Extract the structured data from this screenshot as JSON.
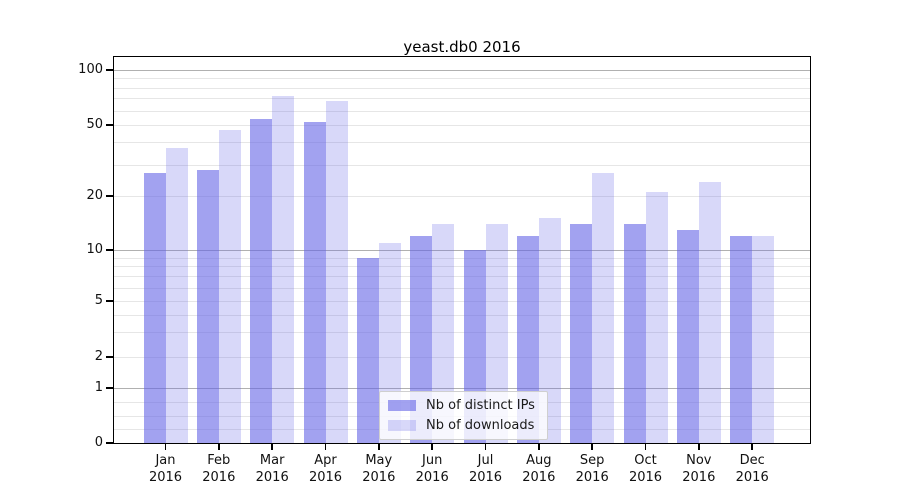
{
  "title": "yeast.db0 2016",
  "chart_data": {
    "type": "bar",
    "title": "yeast.db0 2016",
    "categories": [
      "Jan 2016",
      "Feb 2016",
      "Mar 2016",
      "Apr 2016",
      "May 2016",
      "Jun 2016",
      "Jul 2016",
      "Aug 2016",
      "Sep 2016",
      "Oct 2016",
      "Nov 2016",
      "Dec 2016"
    ],
    "category_months": [
      "Jan",
      "Feb",
      "Mar",
      "Apr",
      "May",
      "Jun",
      "Jul",
      "Aug",
      "Sep",
      "Oct",
      "Nov",
      "Dec"
    ],
    "category_year": "2016",
    "series": [
      {
        "name": "Nb of distinct IPs",
        "color": "rgba(100,100,230,0.6)",
        "hex_on_white": "#a2a2f0",
        "values": [
          27,
          28,
          54,
          52,
          9,
          12,
          10,
          12,
          14,
          14,
          13,
          12
        ]
      },
      {
        "name": "Nb of downloads",
        "color": "rgba(100,100,230,0.25)",
        "hex_on_white": "#d8d8f8",
        "values": [
          37,
          47,
          72,
          68,
          11,
          14,
          14,
          15,
          27,
          21,
          24,
          12
        ]
      }
    ],
    "xlabel": "",
    "ylabel": "",
    "yscale": "symlog",
    "ylim": [
      0,
      112
    ],
    "yticks": [
      0,
      1,
      2,
      5,
      10,
      20,
      50,
      100
    ],
    "major_gridlines": [
      1,
      10,
      100
    ],
    "minor_gridlines": [
      0.25,
      0.5,
      0.75,
      2,
      3,
      4,
      5,
      6,
      7,
      8,
      9,
      20,
      30,
      40,
      50,
      60,
      70,
      80,
      90
    ],
    "grid": true,
    "legend_position": "lower center"
  },
  "colors": {
    "major_grid": "#b0b0b0",
    "minor_grid": "#e6e6e6",
    "axis": "#000000",
    "text": "#111111"
  }
}
